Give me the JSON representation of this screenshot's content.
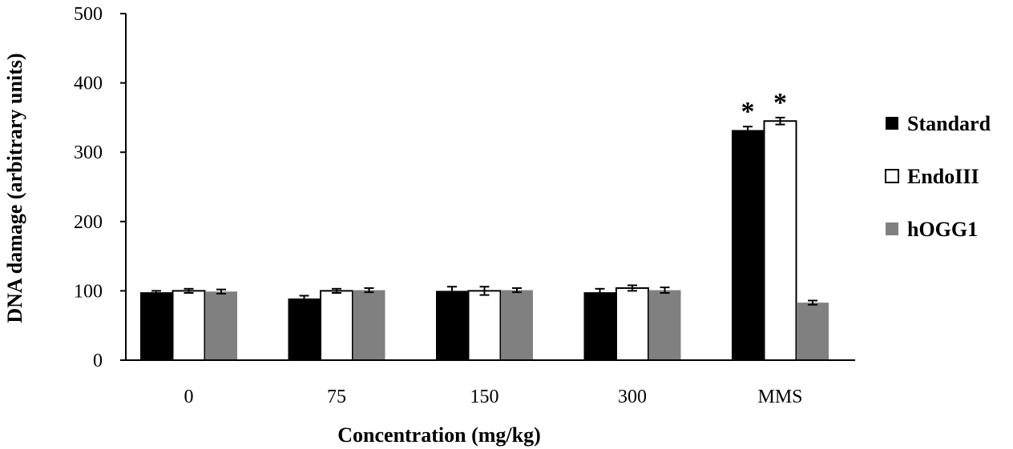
{
  "chart_data": {
    "type": "bar",
    "title": "",
    "xlabel": "Concentration (mg/kg)",
    "ylabel": "DNA damage (arbitrary  units)",
    "ylim": [
      0,
      500
    ],
    "yticks": [
      0,
      100,
      200,
      300,
      400,
      500
    ],
    "grid": false,
    "legend_position": "right",
    "categories": [
      "0",
      "75",
      "150",
      "300",
      "MMS"
    ],
    "series": [
      {
        "name": "Standard",
        "color": "#000000",
        "values": [
          98,
          89,
          100,
          98,
          332
        ],
        "errors": [
          2,
          4,
          6,
          5,
          5
        ]
      },
      {
        "name": "EndoIII",
        "color": "#ffffff",
        "values": [
          100,
          100,
          100,
          104,
          345
        ],
        "errors": [
          3,
          3,
          6,
          4,
          5
        ]
      },
      {
        "name": "hOGG1",
        "color": "#808080",
        "values": [
          99,
          101,
          101,
          101,
          83
        ],
        "errors": [
          3,
          3,
          3,
          4,
          3
        ]
      }
    ],
    "annotations": [
      {
        "text": "*",
        "category": "MMS",
        "series": "Standard"
      },
      {
        "text": "*",
        "category": "MMS",
        "series": "EndoIII"
      }
    ]
  }
}
